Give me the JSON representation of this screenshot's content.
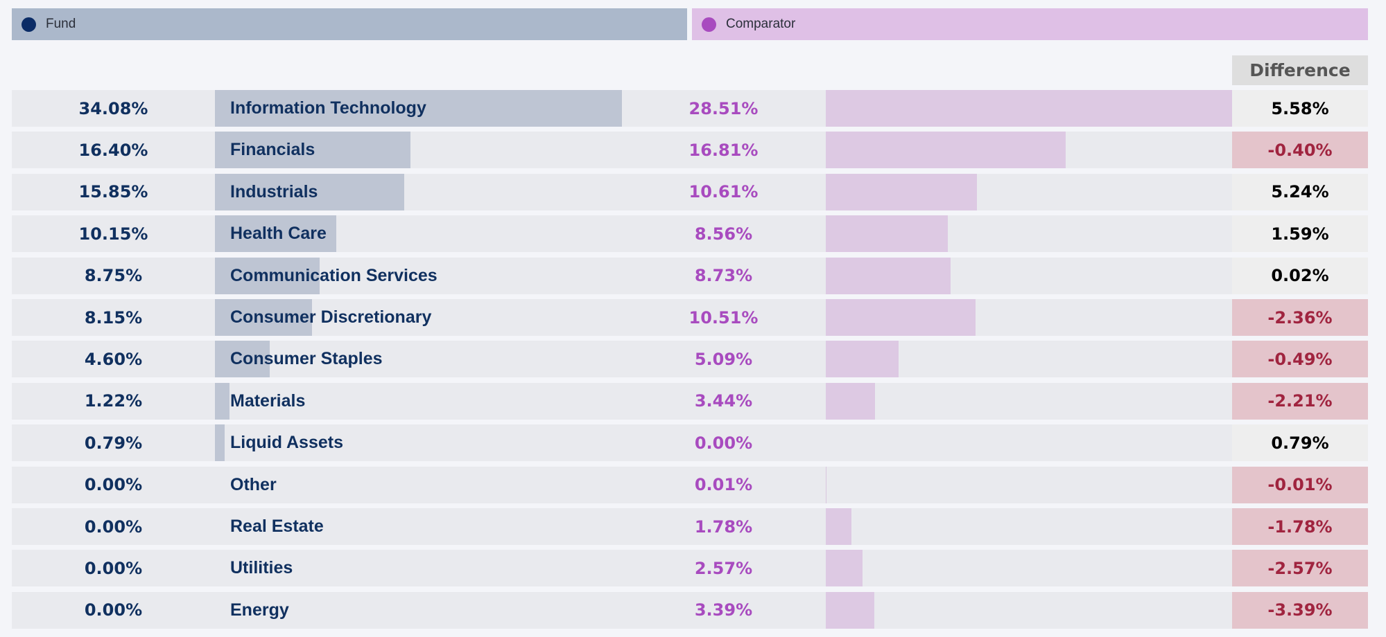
{
  "legend": {
    "fund": {
      "label": "Fund",
      "color": "#0b2c66"
    },
    "comparator": {
      "label": "Comparator",
      "color": "#a84bbf"
    }
  },
  "difference_header": "Difference",
  "chart_data": {
    "type": "bar",
    "title": "",
    "orientation": "horizontal",
    "categories": [
      "Information Technology",
      "Financials",
      "Industrials",
      "Health Care",
      "Communication Services",
      "Consumer Discretionary",
      "Consumer Staples",
      "Materials",
      "Liquid Assets",
      "Other",
      "Real Estate",
      "Utilities",
      "Energy"
    ],
    "series": [
      {
        "name": "Fund",
        "values": [
          34.08,
          16.4,
          15.85,
          10.15,
          8.75,
          8.15,
          4.6,
          1.22,
          0.79,
          0.0,
          0.0,
          0.0,
          0.0
        ]
      },
      {
        "name": "Comparator",
        "values": [
          28.51,
          16.81,
          10.61,
          8.56,
          8.73,
          10.51,
          5.09,
          3.44,
          0.0,
          0.01,
          1.78,
          2.57,
          3.39
        ]
      },
      {
        "name": "Difference",
        "values": [
          5.58,
          -0.4,
          5.24,
          1.59,
          0.02,
          -2.36,
          -0.49,
          -2.21,
          0.79,
          -0.01,
          -1.78,
          -2.57,
          -3.39
        ]
      }
    ],
    "unit": "%",
    "legend_position": "top"
  },
  "rows": [
    {
      "sector": "Information Technology",
      "fund": "34.08%",
      "comparator": "28.51%",
      "difference": "5.58%"
    },
    {
      "sector": "Financials",
      "fund": "16.40%",
      "comparator": "16.81%",
      "difference": "-0.40%"
    },
    {
      "sector": "Industrials",
      "fund": "15.85%",
      "comparator": "10.61%",
      "difference": "5.24%"
    },
    {
      "sector": "Health Care",
      "fund": "10.15%",
      "comparator": "8.56%",
      "difference": "1.59%"
    },
    {
      "sector": "Communication Services",
      "fund": "8.75%",
      "comparator": "8.73%",
      "difference": "0.02%"
    },
    {
      "sector": "Consumer Discretionary",
      "fund": "8.15%",
      "comparator": "10.51%",
      "difference": "-2.36%"
    },
    {
      "sector": "Consumer Staples",
      "fund": "4.60%",
      "comparator": "5.09%",
      "difference": "-0.49%"
    },
    {
      "sector": "Materials",
      "fund": "1.22%",
      "comparator": "3.44%",
      "difference": "-2.21%"
    },
    {
      "sector": "Liquid Assets",
      "fund": "0.79%",
      "comparator": "0.00%",
      "difference": "0.79%"
    },
    {
      "sector": "Other",
      "fund": "0.00%",
      "comparator": "0.01%",
      "difference": "-0.01%"
    },
    {
      "sector": "Real Estate",
      "fund": "0.00%",
      "comparator": "1.78%",
      "difference": "-1.78%"
    },
    {
      "sector": "Utilities",
      "fund": "0.00%",
      "comparator": "2.57%",
      "difference": "-2.57%"
    },
    {
      "sector": "Energy",
      "fund": "0.00%",
      "comparator": "3.39%",
      "difference": "-3.39%"
    }
  ]
}
